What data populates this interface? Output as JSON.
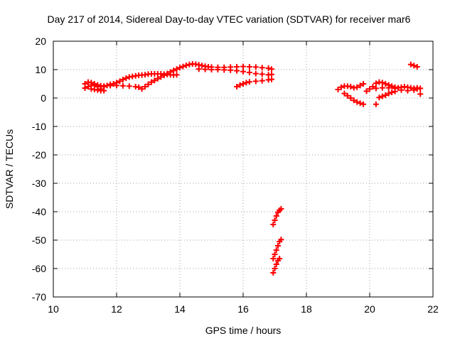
{
  "chart_data": {
    "type": "scatter",
    "title": "Day 217 of 2014, Sidereal Day-to-day VTEC variation (SDTVAR) for receiver mar6",
    "xlabel": "GPS time / hours",
    "ylabel": "SDTVAR / TECUs",
    "xlim": [
      10,
      22
    ],
    "ylim": [
      -70,
      20
    ],
    "xticks": [
      10,
      12,
      14,
      16,
      18,
      20,
      22
    ],
    "yticks": [
      -70,
      -60,
      -50,
      -40,
      -30,
      -20,
      -10,
      0,
      10,
      20
    ],
    "grid": true,
    "legend": "none",
    "marker": "plus",
    "color": "#ff0000",
    "series": [
      {
        "values": [
          [
            11.0,
            5.0
          ],
          [
            11.1,
            5.6
          ],
          [
            11.2,
            5.4
          ],
          [
            11.3,
            5.0
          ],
          [
            11.4,
            4.6
          ],
          [
            11.5,
            4.3
          ],
          [
            11.6,
            4.0
          ],
          [
            11.7,
            4.4
          ],
          [
            11.8,
            4.8
          ],
          [
            11.9,
            5.0
          ],
          [
            12.0,
            5.4
          ],
          [
            12.1,
            5.9
          ],
          [
            12.2,
            6.5
          ],
          [
            12.3,
            7.0
          ],
          [
            12.4,
            7.4
          ],
          [
            12.5,
            7.6
          ],
          [
            12.6,
            7.8
          ],
          [
            12.7,
            8.0
          ],
          [
            12.8,
            8.1
          ],
          [
            12.9,
            8.2
          ],
          [
            13.0,
            8.4
          ],
          [
            13.1,
            8.5
          ],
          [
            13.2,
            8.5
          ],
          [
            13.3,
            8.5
          ],
          [
            13.4,
            8.5
          ],
          [
            13.5,
            8.4
          ],
          [
            13.6,
            8.3
          ],
          [
            13.7,
            8.2
          ],
          [
            13.8,
            8.1
          ],
          [
            13.9,
            8.2
          ]
        ]
      },
      {
        "values": [
          [
            11.0,
            3.5
          ],
          [
            11.1,
            4.0
          ],
          [
            11.2,
            4.6
          ],
          [
            11.3,
            4.4
          ],
          [
            11.4,
            4.0
          ],
          [
            11.5,
            3.2
          ],
          [
            11.6,
            2.6
          ],
          [
            11.2,
            3.2
          ],
          [
            11.3,
            3.0
          ],
          [
            11.4,
            2.8
          ],
          [
            11.5,
            2.6
          ],
          [
            11.6,
            4.2
          ],
          [
            11.8,
            4.4
          ],
          [
            12.0,
            4.4
          ],
          [
            12.2,
            4.3
          ],
          [
            12.4,
            4.2
          ],
          [
            12.6,
            4.0
          ],
          [
            12.7,
            3.8
          ]
        ]
      },
      {
        "values": [
          [
            12.8,
            3.2
          ],
          [
            12.9,
            4.0
          ],
          [
            13.0,
            4.8
          ],
          [
            13.1,
            5.6
          ],
          [
            13.2,
            6.2
          ],
          [
            13.3,
            6.8
          ],
          [
            13.4,
            7.4
          ],
          [
            13.5,
            8.0
          ],
          [
            13.6,
            8.6
          ],
          [
            13.7,
            9.2
          ],
          [
            13.8,
            9.7
          ],
          [
            13.9,
            10.2
          ],
          [
            14.0,
            10.7
          ],
          [
            14.1,
            11.1
          ],
          [
            14.2,
            11.5
          ],
          [
            14.3,
            11.8
          ],
          [
            14.4,
            12.0
          ],
          [
            14.5,
            11.9
          ],
          [
            14.6,
            11.7
          ],
          [
            14.7,
            11.4
          ],
          [
            14.8,
            11.2
          ],
          [
            14.9,
            11.0
          ],
          [
            15.0,
            10.9
          ],
          [
            15.2,
            10.8
          ],
          [
            15.4,
            10.8
          ],
          [
            15.6,
            10.9
          ],
          [
            15.8,
            11.0
          ],
          [
            16.0,
            11.1
          ],
          [
            16.2,
            11.0
          ],
          [
            16.4,
            10.9
          ],
          [
            16.6,
            10.7
          ],
          [
            16.8,
            10.5
          ],
          [
            16.9,
            10.2
          ]
        ]
      },
      {
        "values": [
          [
            14.6,
            10.2
          ],
          [
            14.8,
            10.1
          ],
          [
            15.0,
            10.0
          ],
          [
            15.2,
            10.0
          ],
          [
            15.4,
            9.9
          ],
          [
            15.6,
            9.8
          ],
          [
            15.8,
            9.6
          ],
          [
            16.0,
            9.3
          ],
          [
            16.2,
            9.0
          ],
          [
            16.4,
            8.6
          ],
          [
            16.6,
            8.4
          ],
          [
            16.8,
            8.2
          ],
          [
            16.9,
            8.3
          ]
        ]
      },
      {
        "values": [
          [
            15.8,
            4.0
          ],
          [
            15.9,
            4.6
          ],
          [
            16.0,
            5.0
          ],
          [
            16.1,
            5.4
          ],
          [
            16.2,
            5.7
          ],
          [
            16.4,
            5.9
          ],
          [
            16.6,
            6.1
          ],
          [
            16.8,
            6.4
          ],
          [
            16.9,
            6.6
          ]
        ]
      },
      {
        "values": [
          [
            19.0,
            3.0
          ],
          [
            19.1,
            3.8
          ],
          [
            19.2,
            4.2
          ],
          [
            19.3,
            4.2
          ],
          [
            19.4,
            4.0
          ],
          [
            19.5,
            3.6
          ],
          [
            19.6,
            3.8
          ],
          [
            19.7,
            4.4
          ],
          [
            19.8,
            5.0
          ],
          [
            19.2,
            1.6
          ],
          [
            19.3,
            0.8
          ],
          [
            19.4,
            0.0
          ],
          [
            19.5,
            -0.8
          ],
          [
            19.6,
            -1.4
          ],
          [
            19.7,
            -1.8
          ],
          [
            19.8,
            -2.2
          ],
          [
            19.9,
            2.4
          ],
          [
            20.0,
            3.2
          ]
        ]
      },
      {
        "values": [
          [
            20.1,
            4.0
          ],
          [
            20.2,
            5.2
          ],
          [
            20.3,
            5.6
          ],
          [
            20.4,
            5.4
          ],
          [
            20.5,
            5.0
          ],
          [
            20.6,
            4.6
          ],
          [
            20.7,
            4.2
          ],
          [
            20.8,
            3.8
          ],
          [
            20.9,
            3.6
          ],
          [
            21.0,
            3.8
          ],
          [
            21.1,
            4.0
          ],
          [
            21.2,
            3.8
          ],
          [
            21.3,
            3.6
          ],
          [
            21.4,
            3.4
          ],
          [
            21.5,
            3.2
          ],
          [
            21.6,
            3.4
          ],
          [
            20.2,
            3.4
          ],
          [
            20.4,
            3.6
          ],
          [
            20.6,
            3.6
          ],
          [
            20.8,
            3.4
          ],
          [
            21.0,
            2.8
          ],
          [
            21.2,
            2.6
          ],
          [
            21.4,
            2.8
          ],
          [
            21.5,
            3.6
          ],
          [
            21.6,
            1.4
          ],
          [
            20.3,
            0.2
          ],
          [
            20.4,
            0.6
          ],
          [
            20.5,
            1.0
          ],
          [
            20.6,
            1.6
          ],
          [
            20.7,
            2.0
          ],
          [
            20.8,
            2.3
          ],
          [
            20.2,
            -2.2
          ]
        ]
      },
      {
        "values": [
          [
            21.3,
            11.8
          ],
          [
            21.4,
            11.4
          ],
          [
            21.5,
            11.0
          ]
        ]
      },
      {
        "values": [
          [
            16.95,
            -44.5
          ],
          [
            17.0,
            -43.0
          ],
          [
            17.05,
            -41.5
          ],
          [
            17.1,
            -40.2
          ],
          [
            17.15,
            -39.5
          ],
          [
            17.2,
            -39.0
          ]
        ]
      },
      {
        "values": [
          [
            16.95,
            -56.5
          ],
          [
            17.0,
            -55.0
          ],
          [
            17.05,
            -53.5
          ],
          [
            17.1,
            -52.0
          ],
          [
            17.15,
            -50.5
          ],
          [
            17.2,
            -49.8
          ]
        ]
      },
      {
        "values": [
          [
            16.95,
            -61.5
          ],
          [
            17.0,
            -60.0
          ],
          [
            17.05,
            -58.5
          ],
          [
            17.1,
            -57.2
          ],
          [
            17.15,
            -56.5
          ]
        ]
      }
    ]
  }
}
